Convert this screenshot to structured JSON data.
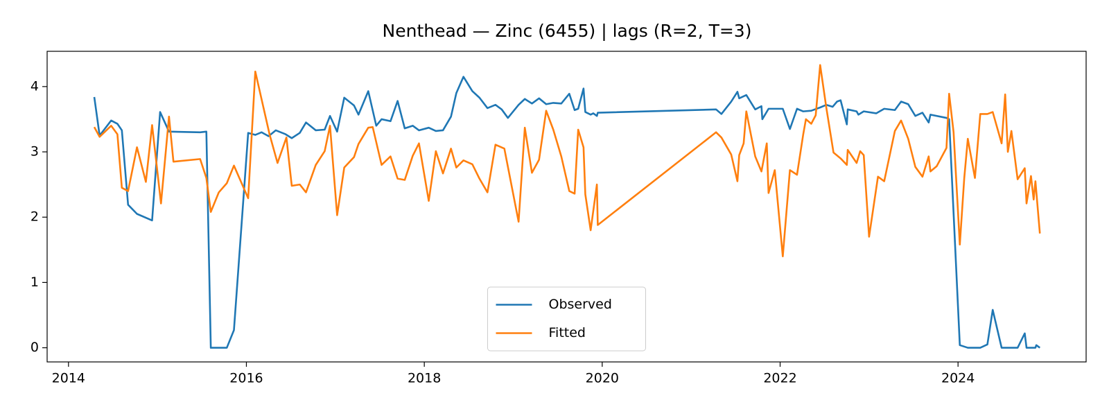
{
  "chart_data": {
    "type": "line",
    "title": "Nenthead — Zinc (6455) | lags (R=2, T=3)",
    "xlim": [
      2013.76,
      2025.44
    ],
    "xticks": [
      2014,
      2016,
      2018,
      2020,
      2022,
      2024
    ],
    "ylim": [
      -0.217,
      4.54
    ],
    "yticks": [
      0,
      1,
      2,
      3,
      4
    ],
    "grid": false,
    "legend": "lower center",
    "series": [
      {
        "name": "Observed",
        "color": "#1f77b4",
        "x": [
          2014.29,
          2014.35,
          2014.48,
          2014.55,
          2014.6,
          2014.67,
          2014.77,
          2014.94,
          2015.03,
          2015.13,
          2015.48,
          2015.55,
          2015.6,
          2015.78,
          2015.86,
          2016.02,
          2016.1,
          2016.17,
          2016.25,
          2016.33,
          2016.44,
          2016.51,
          2016.6,
          2016.67,
          2016.78,
          2016.88,
          2016.94,
          2017.02,
          2017.1,
          2017.21,
          2017.26,
          2017.37,
          2017.46,
          2017.52,
          2017.62,
          2017.7,
          2017.78,
          2017.87,
          2017.94,
          2018.05,
          2018.13,
          2018.21,
          2018.3,
          2018.36,
          2018.44,
          2018.54,
          2018.62,
          2018.71,
          2018.8,
          2018.87,
          2018.94,
          2019.06,
          2019.13,
          2019.21,
          2019.29,
          2019.37,
          2019.45,
          2019.54,
          2019.63,
          2019.69,
          2019.73,
          2019.79,
          2019.81,
          2019.87,
          2019.9,
          2019.94,
          2019.95,
          2021.28,
          2021.34,
          2021.45,
          2021.52,
          2021.54,
          2021.62,
          2021.72,
          2021.79,
          2021.8,
          2021.87,
          2022.03,
          2022.11,
          2022.19,
          2022.26,
          2022.35,
          2022.45,
          2022.52,
          2022.59,
          2022.64,
          2022.68,
          2022.75,
          2022.76,
          2022.86,
          2022.88,
          2022.94,
          2023.08,
          2023.17,
          2023.29,
          2023.36,
          2023.44,
          2023.52,
          2023.6,
          2023.67,
          2023.69,
          2023.87,
          2023.9,
          2024.02,
          2024.11,
          2024.25,
          2024.33,
          2024.39,
          2024.49,
          2024.67,
          2024.75,
          2024.77,
          2024.87,
          2024.88,
          2024.92
        ],
        "values": [
          3.84,
          3.25,
          3.48,
          3.43,
          3.33,
          2.19,
          2.05,
          1.95,
          3.61,
          3.31,
          3.3,
          3.31,
          0,
          0,
          0.27,
          3.29,
          3.26,
          3.3,
          3.24,
          3.33,
          3.27,
          3.21,
          3.29,
          3.45,
          3.33,
          3.34,
          3.55,
          3.31,
          3.83,
          3.71,
          3.57,
          3.93,
          3.4,
          3.5,
          3.47,
          3.78,
          3.36,
          3.4,
          3.33,
          3.37,
          3.32,
          3.33,
          3.54,
          3.9,
          4.15,
          3.93,
          3.83,
          3.67,
          3.72,
          3.65,
          3.52,
          3.72,
          3.81,
          3.74,
          3.82,
          3.73,
          3.75,
          3.74,
          3.89,
          3.64,
          3.66,
          3.97,
          3.61,
          3.57,
          3.59,
          3.55,
          3.6,
          3.65,
          3.58,
          3.77,
          3.92,
          3.82,
          3.87,
          3.65,
          3.7,
          3.5,
          3.66,
          3.66,
          3.35,
          3.66,
          3.62,
          3.63,
          3.68,
          3.72,
          3.69,
          3.77,
          3.79,
          3.42,
          3.65,
          3.62,
          3.57,
          3.62,
          3.59,
          3.66,
          3.64,
          3.77,
          3.73,
          3.55,
          3.6,
          3.45,
          3.57,
          3.52,
          3.5,
          0.04,
          0,
          0,
          0.05,
          0.58,
          0,
          0,
          0.22,
          0,
          0,
          0.04,
          0
        ]
      },
      {
        "name": "Fitted",
        "color": "#ff7f0e",
        "x": [
          2014.29,
          2014.35,
          2014.48,
          2014.55,
          2014.6,
          2014.67,
          2014.77,
          2014.87,
          2014.94,
          2015.04,
          2015.13,
          2015.18,
          2015.48,
          2015.55,
          2015.6,
          2015.69,
          2015.78,
          2015.86,
          2016.02,
          2016.1,
          2016.26,
          2016.35,
          2016.45,
          2016.51,
          2016.6,
          2016.67,
          2016.78,
          2016.88,
          2016.94,
          2017.02,
          2017.1,
          2017.21,
          2017.26,
          2017.37,
          2017.42,
          2017.52,
          2017.62,
          2017.7,
          2017.78,
          2017.87,
          2017.94,
          2018.05,
          2018.13,
          2018.21,
          2018.3,
          2018.36,
          2018.44,
          2018.54,
          2018.62,
          2018.71,
          2018.8,
          2018.9,
          2019.06,
          2019.13,
          2019.21,
          2019.29,
          2019.37,
          2019.45,
          2019.54,
          2019.63,
          2019.69,
          2019.73,
          2019.79,
          2019.81,
          2019.87,
          2019.94,
          2019.95,
          2021.28,
          2021.34,
          2021.45,
          2021.52,
          2021.54,
          2021.59,
          2021.62,
          2021.72,
          2021.79,
          2021.85,
          2021.87,
          2021.94,
          2022.03,
          2022.11,
          2022.19,
          2022.26,
          2022.29,
          2022.35,
          2022.4,
          2022.45,
          2022.52,
          2022.6,
          2022.68,
          2022.75,
          2022.76,
          2022.86,
          2022.9,
          2022.94,
          2023.0,
          2023.1,
          2023.17,
          2023.29,
          2023.36,
          2023.44,
          2023.52,
          2023.6,
          2023.67,
          2023.69,
          2023.76,
          2023.87,
          2023.9,
          2023.95,
          2024.02,
          2024.07,
          2024.11,
          2024.19,
          2024.25,
          2024.33,
          2024.39,
          2024.49,
          2024.53,
          2024.56,
          2024.6,
          2024.67,
          2024.75,
          2024.77,
          2024.82,
          2024.85,
          2024.87,
          2024.92
        ],
        "values": [
          3.38,
          3.23,
          3.4,
          3.27,
          2.45,
          2.4,
          3.07,
          2.54,
          3.41,
          2.21,
          3.54,
          2.85,
          2.89,
          2.6,
          2.08,
          2.38,
          2.52,
          2.79,
          2.29,
          4.23,
          3.27,
          2.83,
          3.22,
          2.48,
          2.5,
          2.38,
          2.8,
          3.01,
          3.4,
          2.03,
          2.76,
          2.92,
          3.12,
          3.37,
          3.38,
          2.8,
          2.93,
          2.59,
          2.57,
          2.94,
          3.13,
          2.25,
          3.01,
          2.67,
          3.05,
          2.76,
          2.87,
          2.81,
          2.59,
          2.38,
          3.11,
          3.05,
          1.93,
          3.37,
          2.68,
          2.88,
          3.63,
          3.34,
          2.93,
          2.4,
          2.36,
          3.34,
          3.07,
          2.35,
          1.8,
          2.5,
          1.88,
          3.3,
          3.22,
          2.96,
          2.55,
          2.95,
          3.13,
          3.62,
          2.93,
          2.7,
          3.13,
          2.37,
          2.72,
          1.4,
          2.72,
          2.65,
          3.27,
          3.5,
          3.43,
          3.56,
          4.33,
          3.67,
          2.99,
          2.9,
          2.8,
          3.03,
          2.83,
          3.01,
          2.95,
          1.7,
          2.62,
          2.55,
          3.32,
          3.48,
          3.2,
          2.77,
          2.62,
          2.93,
          2.7,
          2.78,
          3.06,
          3.89,
          3.3,
          1.58,
          2.6,
          3.2,
          2.6,
          3.58,
          3.58,
          3.61,
          3.13,
          3.88,
          3.0,
          3.32,
          2.58,
          2.75,
          2.21,
          2.63,
          2.27,
          2.55,
          1.75
        ]
      }
    ]
  }
}
